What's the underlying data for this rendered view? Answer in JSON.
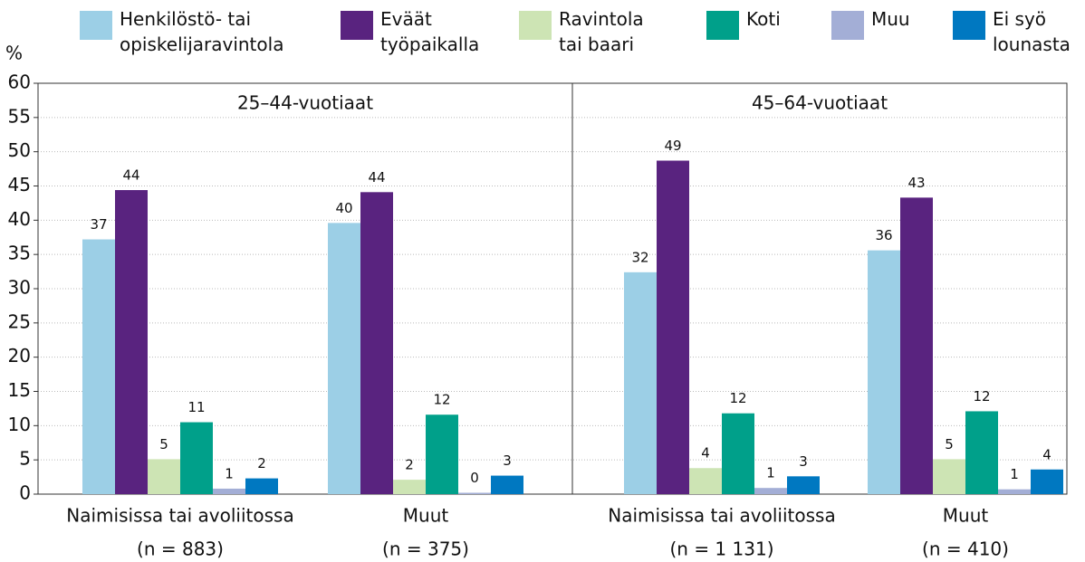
{
  "chart_data": {
    "type": "bar",
    "y_label": "%",
    "ylim": [
      0,
      60
    ],
    "yticks": [
      0,
      5,
      10,
      15,
      20,
      25,
      30,
      35,
      40,
      45,
      50,
      55,
      60
    ],
    "grid": true,
    "legend": [
      {
        "name": "Henkilöstö- tai\nopiskelijaravintola",
        "color": "#9ccfe6"
      },
      {
        "name": "Eväät\ntyöpaikalla",
        "color": "#59237f"
      },
      {
        "name": "Ravintola\ntai baari",
        "color": "#cde4b4"
      },
      {
        "name": "Koti",
        "color": "#00a08a"
      },
      {
        "name": "Muu",
        "color": "#a3aed6"
      },
      {
        "name": "Ei syö\nlounasta",
        "color": "#0078c1"
      }
    ],
    "panels": [
      {
        "title": "25–44-vuotiaat",
        "categories": [
          "Naimisissa tai avoliitossa",
          "Muut"
        ],
        "n_labels": [
          "(n = 883)",
          "(n = 375)"
        ],
        "series": [
          {
            "values": [
              37.2,
              39.6
            ],
            "value_labels": [
              "37",
              "40"
            ]
          },
          {
            "values": [
              44.4,
              44.1
            ],
            "value_labels": [
              "44",
              "44"
            ]
          },
          {
            "values": [
              5.1,
              2.1
            ],
            "value_labels": [
              "5",
              "2"
            ]
          },
          {
            "values": [
              10.5,
              11.6
            ],
            "value_labels": [
              "11",
              "12"
            ]
          },
          {
            "values": [
              0.8,
              0.2
            ],
            "value_labels": [
              "1",
              "0"
            ]
          },
          {
            "values": [
              2.3,
              2.7
            ],
            "value_labels": [
              "2",
              "3"
            ]
          }
        ]
      },
      {
        "title": "45–64-vuotiaat",
        "categories": [
          "Naimisissa tai avoliitossa",
          "Muut"
        ],
        "n_labels": [
          "(n = 1 131)",
          "(n = 410)"
        ],
        "series": [
          {
            "values": [
              32.4,
              35.6
            ],
            "value_labels": [
              "32",
              "36"
            ]
          },
          {
            "values": [
              48.7,
              43.3
            ],
            "value_labels": [
              "49",
              "43"
            ]
          },
          {
            "values": [
              3.8,
              5.1
            ],
            "value_labels": [
              "4",
              "5"
            ]
          },
          {
            "values": [
              11.8,
              12.1
            ],
            "value_labels": [
              "12",
              "12"
            ]
          },
          {
            "values": [
              0.9,
              0.7
            ],
            "value_labels": [
              "1",
              "1"
            ]
          },
          {
            "values": [
              2.6,
              3.6
            ],
            "value_labels": [
              "3",
              "4"
            ]
          }
        ]
      }
    ]
  }
}
